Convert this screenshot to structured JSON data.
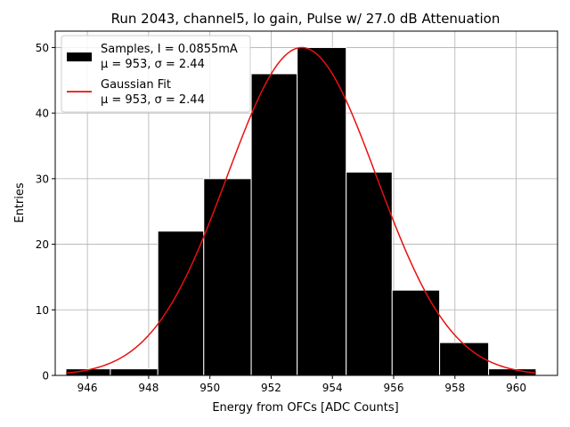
{
  "chart_data": {
    "type": "bar",
    "title": "Run 2043, channel5, lo gain, Pulse w/ 27.0 dB Attenuation",
    "xlabel": "Energy from OFCs [ADC Counts]",
    "ylabel": "Entries",
    "xlim": [
      944.95,
      961.35
    ],
    "ylim": [
      0,
      52.5
    ],
    "xticks": [
      946,
      948,
      950,
      952,
      954,
      956,
      958,
      960
    ],
    "yticks": [
      0,
      10,
      20,
      30,
      40,
      50
    ],
    "grid": true,
    "legend_position": "top-left",
    "bin_edges": [
      945.3,
      946.75,
      948.3,
      949.8,
      951.35,
      952.85,
      954.45,
      955.95,
      957.5,
      959.1,
      960.65
    ],
    "counts": [
      1,
      1,
      22,
      30,
      46,
      50,
      31,
      13,
      5,
      1
    ],
    "hist_color": "#000000",
    "fit": {
      "mu": 953,
      "sigma": 2.44,
      "amplitude": 50,
      "color": "#e81010"
    },
    "legend": [
      {
        "kind": "patch",
        "line1": "Samples, I = 0.0855mA",
        "line2": "μ = 953, σ = 2.44",
        "color": "#000000"
      },
      {
        "kind": "line",
        "line1": "Gaussian Fit",
        "line2": "μ = 953, σ = 2.44",
        "color": "#e81010"
      }
    ]
  }
}
